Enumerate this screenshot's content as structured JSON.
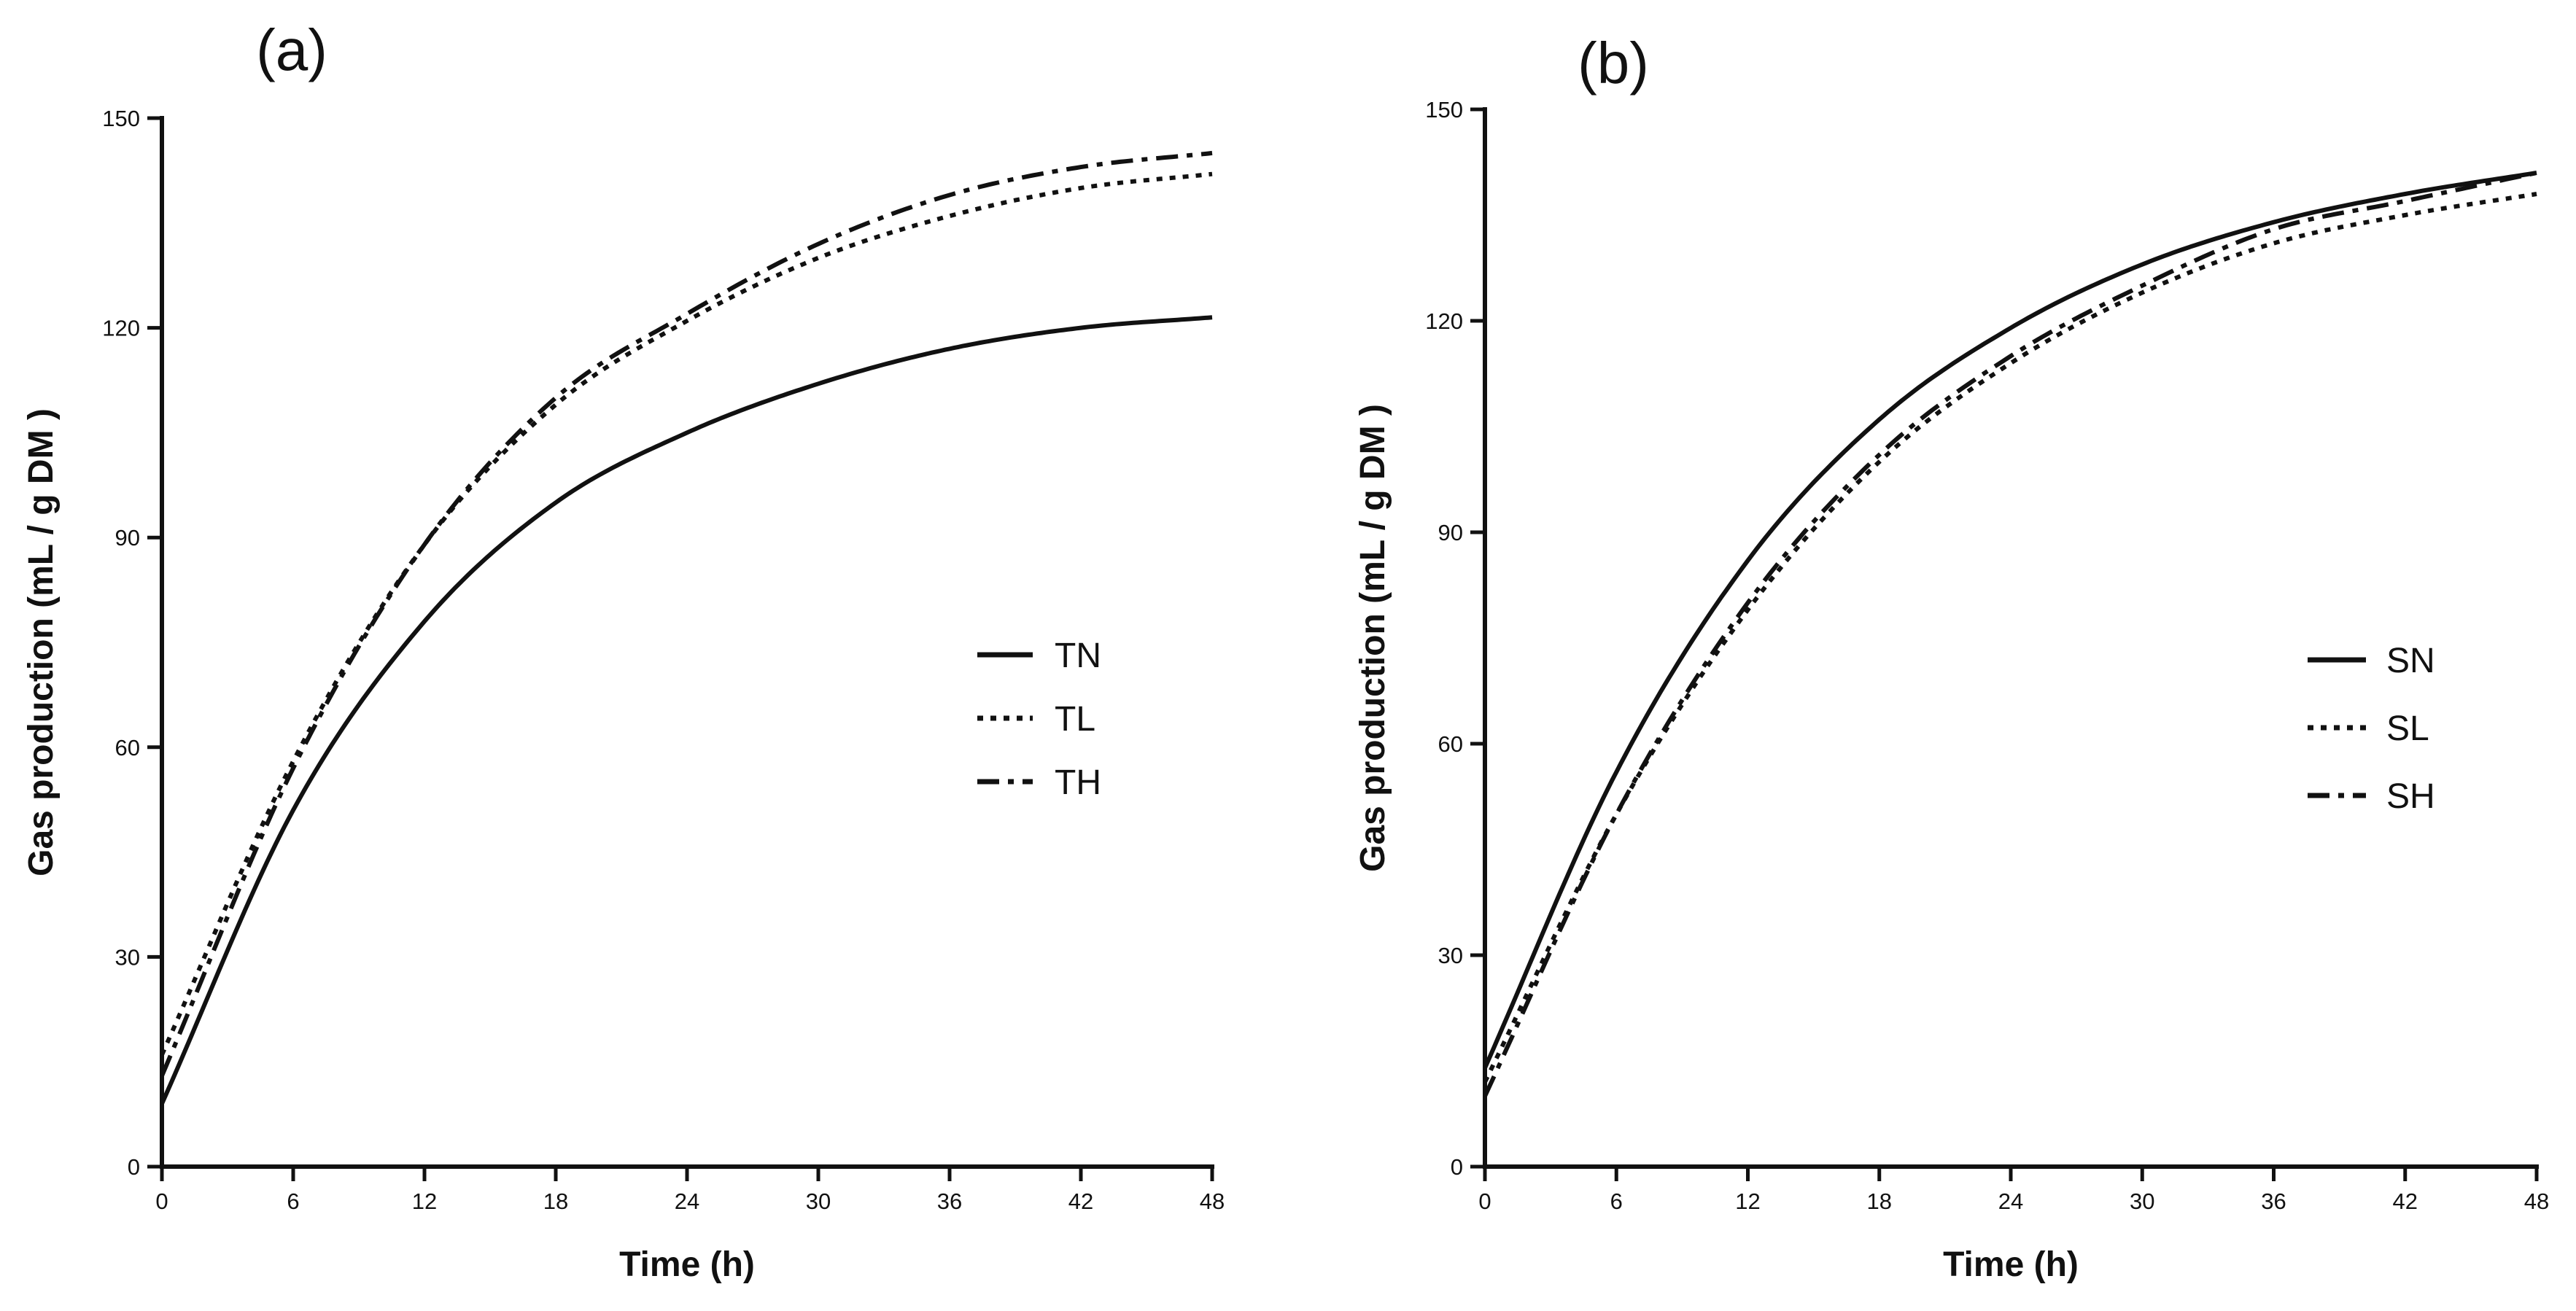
{
  "colors": {
    "ink": "#111111",
    "background": "#ffffff"
  },
  "chart_data": [
    {
      "type": "line",
      "panel_label": "(a)",
      "title": "",
      "xlabel": "Time (h)",
      "ylabel": "Gas production (mL / g DM )",
      "xlim": [
        0,
        48
      ],
      "ylim": [
        0,
        150
      ],
      "xticks": [
        0,
        6,
        12,
        18,
        24,
        30,
        36,
        42,
        48
      ],
      "yticks": [
        0,
        30,
        60,
        90,
        120,
        150
      ],
      "grid": false,
      "legend_position": "middle-right",
      "x": [
        0,
        6,
        12,
        18,
        24,
        30,
        36,
        42,
        48
      ],
      "series": [
        {
          "name": "TN",
          "style": "solid",
          "values": [
            9,
            51,
            78,
            95,
            105,
            112,
            117,
            120,
            121.5
          ]
        },
        {
          "name": "TL",
          "style": "dotted",
          "values": [
            16,
            58,
            89,
            109,
            121,
            130,
            136,
            140,
            142
          ]
        },
        {
          "name": "TH",
          "style": "dashdot",
          "values": [
            13,
            57,
            89,
            110,
            122,
            132,
            139,
            143,
            145
          ]
        }
      ]
    },
    {
      "type": "line",
      "panel_label": "(b)",
      "title": "",
      "xlabel": "Time (h)",
      "ylabel": "Gas production (mL / g DM )",
      "xlim": [
        0,
        48
      ],
      "ylim": [
        0,
        150
      ],
      "xticks": [
        0,
        6,
        12,
        18,
        24,
        30,
        36,
        42,
        48
      ],
      "yticks": [
        0,
        30,
        60,
        90,
        120,
        150
      ],
      "grid": false,
      "legend_position": "middle-right",
      "x": [
        0,
        6,
        12,
        18,
        24,
        30,
        36,
        42,
        48
      ],
      "series": [
        {
          "name": "SN",
          "style": "solid",
          "values": [
            14,
            56,
            86,
            106,
            119,
            128,
            134,
            138,
            141
          ]
        },
        {
          "name": "SL",
          "style": "dotted",
          "values": [
            12,
            50,
            79,
            100,
            114,
            124,
            131,
            135,
            138
          ]
        },
        {
          "name": "SH",
          "style": "dashdot",
          "values": [
            10,
            50,
            80,
            101,
            115,
            125,
            133,
            137,
            141
          ]
        }
      ]
    }
  ]
}
